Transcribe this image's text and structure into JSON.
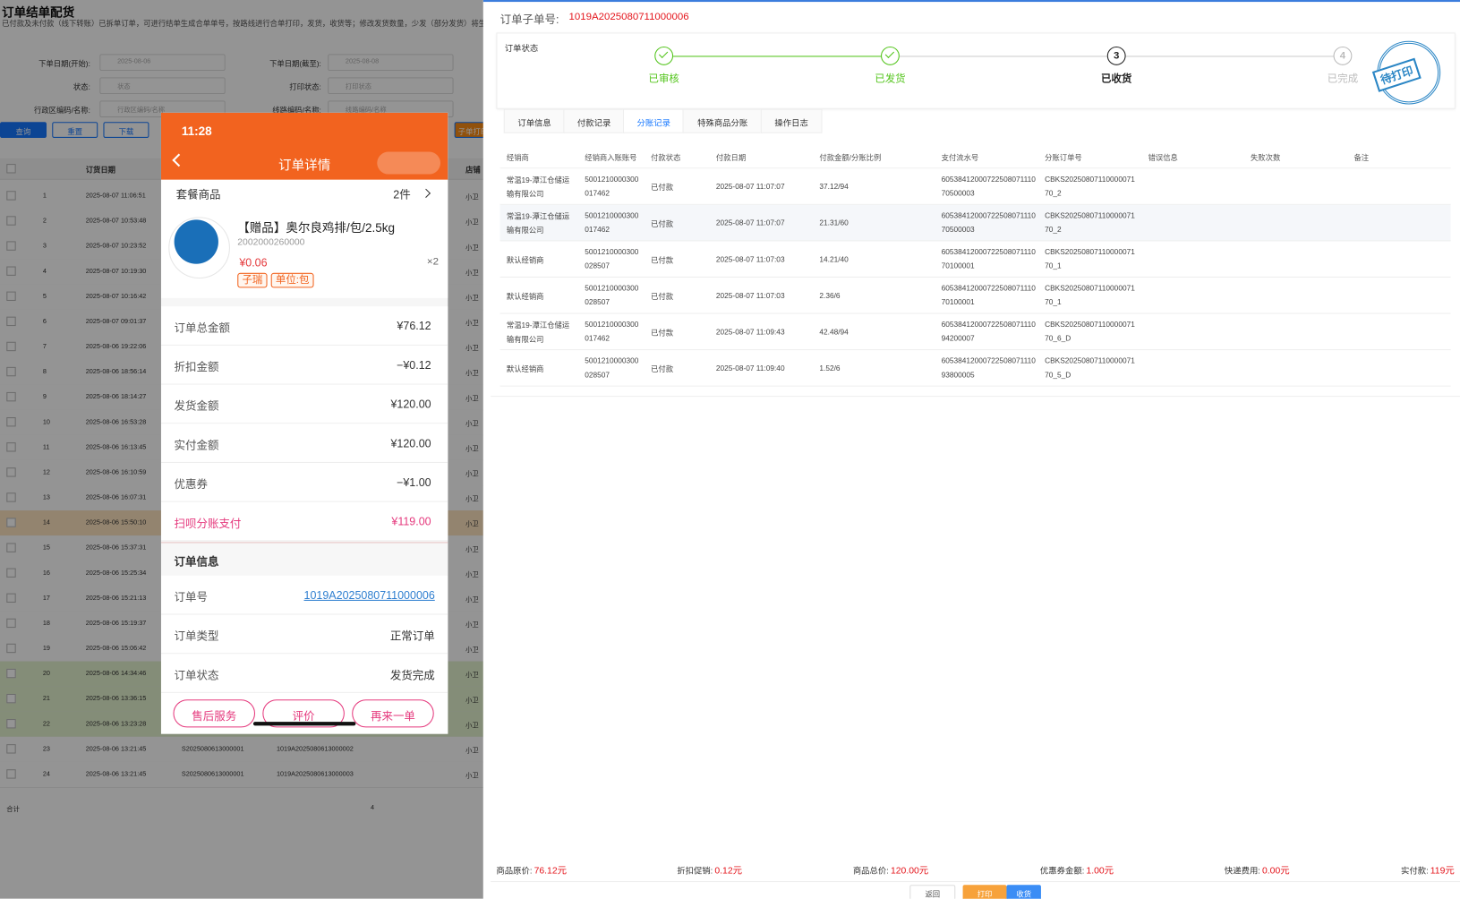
{
  "left_page": {
    "title": "订单结单配货",
    "subtitle": "已付款及未付款（线下转账）已拆单订单，可进行结单生成合单单号，按路线进行合单打印，发货，收货等；修改发货数量，少发（部分发货）将生",
    "filters": [
      {
        "label": "下单日期(开始):",
        "value": "2025-08-06"
      },
      {
        "label": "下单日期(截至):",
        "value": "2025-08-08"
      },
      {
        "label": "状态:",
        "value": "状态"
      },
      {
        "label": "打印状态:",
        "value": "打印状态"
      },
      {
        "label": "行政区编码/名称:",
        "value": "行政区编码/名称"
      },
      {
        "label": "线路编码/名称:",
        "value": "线路编码/名称"
      }
    ],
    "buttons": [
      "查询",
      "重置",
      "下载",
      "子单打印"
    ],
    "headers": [
      "订货日期",
      "店铺"
    ],
    "rows": [
      {
        "no": "1",
        "date": "2025-08-07 11:06:51",
        "shop": "小卫"
      },
      {
        "no": "2",
        "date": "2025-08-07 10:53:48",
        "shop": "小卫"
      },
      {
        "no": "3",
        "date": "2025-08-07 10:23:52",
        "shop": "小卫"
      },
      {
        "no": "4",
        "date": "2025-08-07 10:19:30",
        "shop": "小卫"
      },
      {
        "no": "5",
        "date": "2025-08-07 10:16:42",
        "shop": "小卫"
      },
      {
        "no": "6",
        "date": "2025-08-07 09:01:37",
        "shop": "小卫"
      },
      {
        "no": "7",
        "date": "2025-08-06 19:22:06",
        "shop": "小卫"
      },
      {
        "no": "8",
        "date": "2025-08-06 18:56:14",
        "shop": "小卫"
      },
      {
        "no": "9",
        "date": "2025-08-06 18:14:27",
        "shop": "小卫"
      },
      {
        "no": "10",
        "date": "2025-08-06 16:53:28",
        "shop": "小卫"
      },
      {
        "no": "11",
        "date": "2025-08-06 16:13:45",
        "shop": "小卫"
      },
      {
        "no": "12",
        "date": "2025-08-06 16:10:59",
        "shop": "小卫"
      },
      {
        "no": "13",
        "date": "2025-08-06 16:07:31",
        "shop": "小卫"
      },
      {
        "no": "14",
        "date": "2025-08-06 15:50:10",
        "shop": "小卫",
        "highlight": "orange"
      },
      {
        "no": "15",
        "date": "2025-08-06 15:37:31",
        "shop": "小卫"
      },
      {
        "no": "16",
        "date": "2025-08-06 15:25:34",
        "shop": "小卫"
      },
      {
        "no": "17",
        "date": "2025-08-06 15:21:13",
        "shop": "小卫"
      },
      {
        "no": "18",
        "date": "2025-08-06 15:19:37",
        "shop": "小卫"
      },
      {
        "no": "19",
        "date": "2025-08-06 15:06:42",
        "shop": "小卫"
      },
      {
        "no": "20",
        "date": "2025-08-06 14:34:46",
        "shop": "小卫",
        "highlight": "green"
      },
      {
        "no": "21",
        "date": "2025-08-06 13:36:15",
        "shop": "小卫",
        "highlight": "green"
      },
      {
        "no": "22",
        "date": "2025-08-06 13:23:28",
        "shop": "小卫",
        "highlight": "green"
      },
      {
        "no": "23",
        "date": "2025-08-06 13:21:45",
        "sub_no": "S2025080613000001",
        "order_no": "1019A2025080613000002",
        "shop": "小卫"
      },
      {
        "no": "24",
        "date": "2025-08-06 13:21:45",
        "sub_no": "S2025080613000001",
        "order_no": "1019A2025080613000003",
        "shop": "小卫"
      }
    ],
    "total_label": "合计",
    "total_value": "4"
  },
  "phone": {
    "time": "11:28",
    "title": "订单详情",
    "package_label": "套餐商品",
    "package_count": "2件",
    "product": {
      "name": "【赠品】奥尔良鸡排/包/2.5kg",
      "code": "2002000260000",
      "price": "¥0.06",
      "tags": [
        "子瑞",
        "单位:包"
      ],
      "qty": "×2"
    },
    "amounts": [
      {
        "label": "订单总金额",
        "value": "¥76.12"
      },
      {
        "label": "折扣金额",
        "value": "−¥0.12"
      },
      {
        "label": "发货金额",
        "value": "¥120.00"
      },
      {
        "label": "实付金额",
        "value": "¥120.00"
      },
      {
        "label": "优惠券",
        "value": "−¥1.00"
      },
      {
        "label": "扫呗分账支付",
        "value": "¥119.00",
        "accent": true
      }
    ],
    "info_title": "订单信息",
    "info": [
      {
        "label": "订单号",
        "value": "1019A2025080711000006",
        "link": true
      },
      {
        "label": "订单类型",
        "value": "正常订单"
      },
      {
        "label": "订单状态",
        "value": "发货完成"
      }
    ],
    "buttons": [
      "售后服务",
      "评价",
      "再来一单"
    ]
  },
  "drawer": {
    "sub_order_label": "订单子单号:",
    "sub_order_no": "1019A2025080711000006",
    "status_label": "订单状态",
    "steps": [
      {
        "label": "已审核",
        "state": "done"
      },
      {
        "label": "已发货",
        "state": "done"
      },
      {
        "label": "已收货",
        "number": "3",
        "state": "current"
      },
      {
        "label": "已完成",
        "number": "4",
        "state": "pending"
      }
    ],
    "stamp": "待打印",
    "tabs": [
      "订单信息",
      "付款记录",
      "分账记录",
      "特殊商品分账",
      "操作日志"
    ],
    "active_tab": 2,
    "columns": [
      "经销商",
      "经销商入账账号",
      "付款状态",
      "付款日期",
      "付款金额/分账比例",
      "支付流水号",
      "分账订单号",
      "错误信息",
      "失败次数",
      "备注"
    ],
    "rows": [
      [
        [
          "常温19-潭江仓储运",
          "输有限公司"
        ],
        [
          "5001210000300",
          "017462"
        ],
        [
          "已付款"
        ],
        [
          "2025-08-07 11:07:07"
        ],
        [
          "37.12/94"
        ],
        [
          "60538412000722508071110",
          "70500003"
        ],
        [
          "CBKS20250807110000071",
          "70_2"
        ]
      ],
      [
        [
          "常温19-潭江仓储运",
          "输有限公司"
        ],
        [
          "5001210000300",
          "017462"
        ],
        [
          "已付款"
        ],
        [
          "2025-08-07 11:07:07"
        ],
        [
          "21.31/60"
        ],
        [
          "60538412000722508071110",
          "70500003"
        ],
        [
          "CBKS20250807110000071",
          "70_2"
        ]
      ],
      [
        [
          "默认经销商"
        ],
        [
          "5001210000300",
          "028507"
        ],
        [
          "已付款"
        ],
        [
          "2025-08-07 11:07:03"
        ],
        [
          "14.21/40"
        ],
        [
          "60538412000722508071110",
          "70100001"
        ],
        [
          "CBKS20250807110000071",
          "70_1"
        ]
      ],
      [
        [
          "默认经销商"
        ],
        [
          "5001210000300",
          "028507"
        ],
        [
          "已付款"
        ],
        [
          "2025-08-07 11:07:03"
        ],
        [
          "2.36/6"
        ],
        [
          "60538412000722508071110",
          "70100001"
        ],
        [
          "CBKS20250807110000071",
          "70_1"
        ]
      ],
      [
        [
          "常温19-潭江仓储运",
          "输有限公司"
        ],
        [
          "5001210000300",
          "017462"
        ],
        [
          "已付款"
        ],
        [
          "2025-08-07 11:09:43"
        ],
        [
          "42.48/94"
        ],
        [
          "60538412000722508071110",
          "94200007"
        ],
        [
          "CBKS20250807110000071",
          "70_6_D"
        ]
      ],
      [
        [
          "默认经销商"
        ],
        [
          "5001210000300",
          "028507"
        ],
        [
          "已付款"
        ],
        [
          "2025-08-07 11:09:40"
        ],
        [
          "1.52/6"
        ],
        [
          "60538412000722508071110",
          "93800005"
        ],
        [
          "CBKS20250807110000071",
          "70_5_D"
        ]
      ]
    ],
    "totals": [
      {
        "label": "商品原价:",
        "value": "76.12元"
      },
      {
        "label": "折扣促销:",
        "value": "0.12元"
      },
      {
        "label": "商品总价:",
        "value": "120.00元"
      },
      {
        "label": "优惠券金额:",
        "value": "1.00元"
      },
      {
        "label": "快递费用:",
        "value": "0.00元"
      },
      {
        "label": "实付款:",
        "value": "119元"
      }
    ],
    "buttons": [
      "返回",
      "打印",
      "收货"
    ]
  }
}
